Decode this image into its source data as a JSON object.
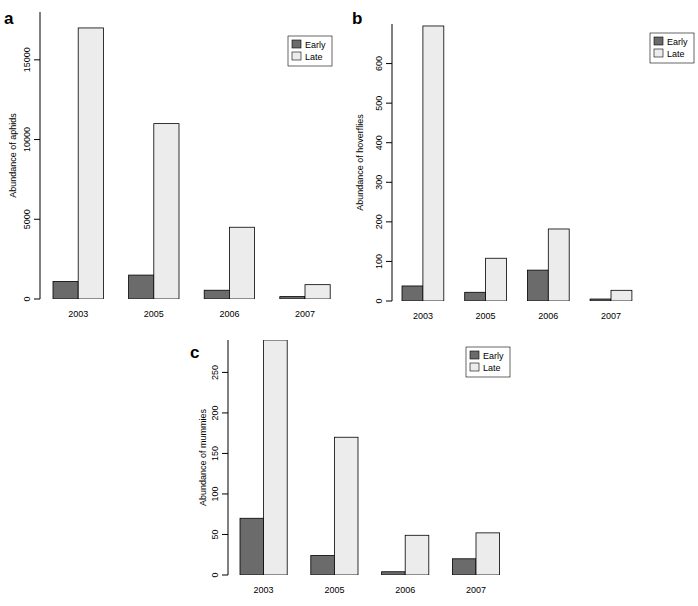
{
  "chart_data": [
    {
      "type": "bar",
      "title": "a",
      "y_label": "Abundance of aphids",
      "categories": [
        "2003",
        "2005",
        "2006",
        "2007"
      ],
      "series": [
        {
          "name": "Early",
          "color": "#6b6b6b",
          "values": [
            1100,
            1500,
            550,
            150
          ]
        },
        {
          "name": "Late",
          "color": "#ececec",
          "values": [
            17000,
            11000,
            4500,
            900
          ]
        }
      ],
      "ylim": [
        0,
        18000
      ],
      "yticks": [
        0,
        5000,
        10000,
        15000
      ],
      "legend": "topright",
      "grid": false
    },
    {
      "type": "bar",
      "title": "b",
      "y_label": "Abundance of hoverflies",
      "categories": [
        "2003",
        "2005",
        "2006",
        "2007"
      ],
      "series": [
        {
          "name": "Early",
          "color": "#6b6b6b",
          "values": [
            38,
            22,
            78,
            5
          ]
        },
        {
          "name": "Late",
          "color": "#ececec",
          "values": [
            695,
            108,
            182,
            27
          ]
        }
      ],
      "ylim": [
        0,
        700
      ],
      "yticks": [
        0,
        100,
        200,
        300,
        400,
        500,
        600
      ],
      "legend": "topright",
      "grid": false
    },
    {
      "type": "bar",
      "title": "c",
      "y_label": "Abundance of mummies",
      "categories": [
        "2003",
        "2005",
        "2006",
        "2007"
      ],
      "series": [
        {
          "name": "Early",
          "color": "#6b6b6b",
          "values": [
            70,
            24,
            4,
            20
          ]
        },
        {
          "name": "Late",
          "color": "#ececec",
          "values": [
            290,
            170,
            49,
            52
          ]
        }
      ],
      "ylim": [
        0,
        290
      ],
      "yticks": [
        0,
        50,
        100,
        150,
        200,
        250
      ],
      "legend": "topright",
      "grid": false
    }
  ]
}
